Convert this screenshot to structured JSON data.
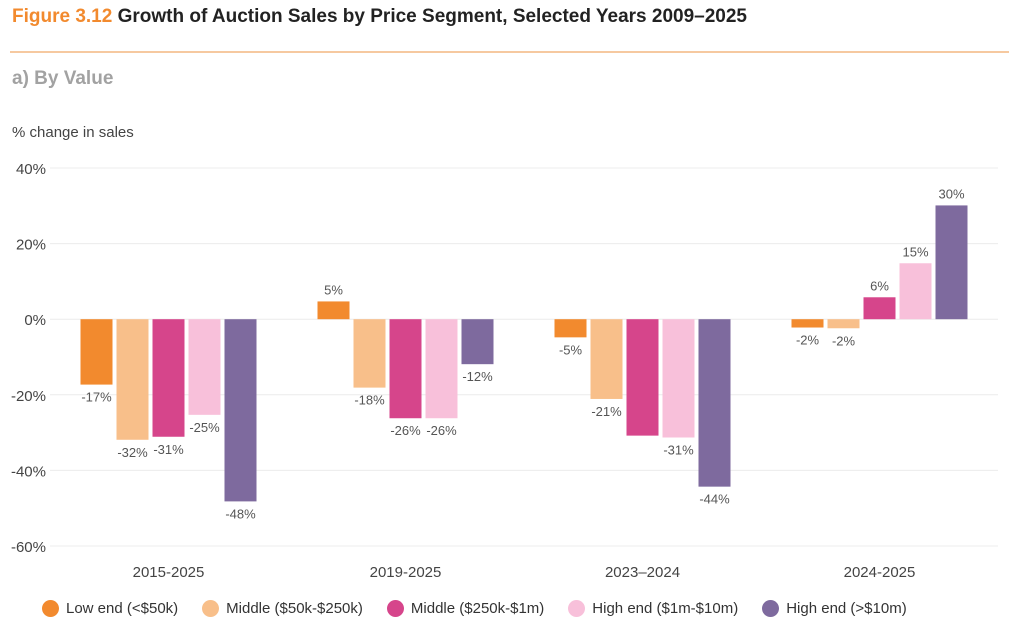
{
  "figure": {
    "number": "Figure 3.12",
    "title": "Growth of Auction Sales by Price Segment, Selected Years 2009–2025",
    "subtitle": "a) By Value"
  },
  "colors": {
    "accent": "#f28a2e",
    "rule": "#f6c9a0",
    "grid": "#ececec"
  },
  "chart_data": {
    "type": "bar",
    "ylabel": "% change in sales",
    "xlabel": "",
    "ylim": [
      -60,
      40
    ],
    "yticks": [
      40,
      20,
      0,
      -20,
      -40,
      -60
    ],
    "ytick_labels": [
      "40%",
      "20%",
      "0%",
      "-20%",
      "-40%",
      "-60%"
    ],
    "grid": true,
    "legend_position": "bottom",
    "categories": [
      "2015-2025",
      "2019-2025",
      "2023–2024",
      "2024-2025"
    ],
    "series": [
      {
        "name": "Low end (<$50k)",
        "color": "#f28a2e",
        "values": [
          -17.3,
          4.7,
          -4.8,
          -2.2
        ],
        "labels": [
          "-17%",
          "5%",
          "-5%",
          "-2%"
        ]
      },
      {
        "name": "Middle ($50k-$250k)",
        "color": "#f8bf8a",
        "values": [
          -31.9,
          -18.1,
          -21.1,
          -2.4
        ],
        "labels": [
          "-32%",
          "-18%",
          "-21%",
          "-2%"
        ]
      },
      {
        "name": "Middle ($250k-$1m)",
        "color": "#d6458b",
        "values": [
          -31.1,
          -26.2,
          -30.8,
          5.8
        ],
        "labels": [
          "-31%",
          "-26%",
          "",
          "6%"
        ]
      },
      {
        "name": "High end ($1m-$10m)",
        "color": "#f8c0da",
        "values": [
          -25.3,
          -26.2,
          -31.3,
          14.8
        ],
        "labels": [
          "-25%",
          "-26%",
          "-31%",
          "15%"
        ]
      },
      {
        "name": "High end (>$10m)",
        "color": "#7e6a9e",
        "values": [
          -48.2,
          -11.9,
          -44.3,
          30.1
        ],
        "labels": [
          "-48%",
          "-12%",
          "-44%",
          "30%"
        ]
      }
    ]
  }
}
